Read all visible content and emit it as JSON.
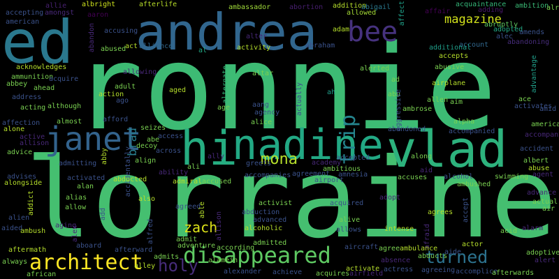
{
  "background": "#000000",
  "words": [
    {
      "text": "ronnie",
      "color": "#3dbb74"
    },
    {
      "text": "lorraine",
      "color": "#45bf70"
    },
    {
      "text": "andrea",
      "color": "#31668e"
    },
    {
      "text": "ed",
      "color": "#2a788e"
    },
    {
      "text": "nadine",
      "color": "#22a884"
    },
    {
      "text": "vlad",
      "color": "#2db27d"
    },
    {
      "text": "hi",
      "color": "#26ad81"
    },
    {
      "text": "janet",
      "color": "#33638d"
    },
    {
      "text": "bee",
      "color": "#46327e"
    },
    {
      "text": "disappeared",
      "color": "#5ec962"
    },
    {
      "text": "architect",
      "color": "#fde725"
    },
    {
      "text": "turned",
      "color": "#2c728e"
    },
    {
      "text": "trip",
      "color": "#25858e"
    },
    {
      "text": "mona",
      "color": "#b5de2b"
    },
    {
      "text": "zach",
      "color": "#dde318"
    },
    {
      "text": "holy",
      "color": "#472c7a"
    },
    {
      "text": "brad",
      "color": "#287d8e"
    },
    {
      "text": "magazine",
      "color": "#d2e21b"
    },
    {
      "text": "accepting",
      "color": "#3b528b"
    },
    {
      "text": "american",
      "color": "#3b528b"
    },
    {
      "text": "allie",
      "color": "#482071"
    },
    {
      "text": "amongst",
      "color": "#482878"
    },
    {
      "text": "albright",
      "color": "#cde11d"
    },
    {
      "text": "aaron",
      "color": "#440154"
    },
    {
      "text": "afterlife",
      "color": "#b8de29"
    },
    {
      "text": "ambassador",
      "color": "#a0da39"
    },
    {
      "text": "abortion",
      "color": "#481f70"
    },
    {
      "text": "addition",
      "color": "#b5de2b"
    },
    {
      "text": "abigail",
      "color": "#2a788e"
    },
    {
      "text": "allowed",
      "color": "#a5db36"
    },
    {
      "text": "affect",
      "color": "#1fa088"
    },
    {
      "text": "affair",
      "color": "#440154"
    },
    {
      "text": "acquaintance",
      "color": "#35b779"
    },
    {
      "text": "ambition",
      "color": "#3aba76"
    },
    {
      "text": "adding",
      "color": "#481769"
    },
    {
      "text": "already",
      "color": "#7ad151"
    },
    {
      "text": "abruptly",
      "color": "#5ec962"
    },
    {
      "text": "adopted",
      "color": "#22a884"
    },
    {
      "text": "amends",
      "color": "#3b528b"
    },
    {
      "text": "alec",
      "color": "#3b528b"
    },
    {
      "text": "abandon",
      "color": "#482878"
    },
    {
      "text": "accusing",
      "color": "#3b528b"
    },
    {
      "text": "alter",
      "color": "#482878"
    },
    {
      "text": "adam",
      "color": "#b5de2b"
    },
    {
      "text": "account",
      "color": "#31688e"
    },
    {
      "text": "abandoning",
      "color": "#472d7b"
    },
    {
      "text": "abused",
      "color": "#7ad151"
    },
    {
      "text": "act",
      "color": "#b5de2b"
    },
    {
      "text": "alliance",
      "color": "#31688e"
    },
    {
      "text": "al",
      "color": "#22a884"
    },
    {
      "text": "activity",
      "color": "#b5de2b"
    },
    {
      "text": "abraham",
      "color": "#3b528b"
    },
    {
      "text": "additional",
      "color": "#1f9e89"
    },
    {
      "text": "accepts",
      "color": "#b5de2b"
    },
    {
      "text": "advantage",
      "color": "#1f9e89"
    },
    {
      "text": "acknowledges",
      "color": "#b5de2b"
    },
    {
      "text": "allowing",
      "color": "#482878"
    },
    {
      "text": "alternate",
      "color": "#35b779"
    },
    {
      "text": "alerted",
      "color": "#7ad151"
    },
    {
      "text": "abusive",
      "color": "#7ad151"
    },
    {
      "text": "ammunition",
      "color": "#7ad151"
    },
    {
      "text": "acquire",
      "color": "#3b528b"
    },
    {
      "text": "adult",
      "color": "#7ad151"
    },
    {
      "text": "altar",
      "color": "#7ad151"
    },
    {
      "text": "ad",
      "color": "#7ad151"
    },
    {
      "text": "airplane",
      "color": "#b5de2b"
    },
    {
      "text": "abbey",
      "color": "#7ad151"
    },
    {
      "text": "ahead",
      "color": "#7ad151"
    },
    {
      "text": "aged",
      "color": "#b5de2b"
    },
    {
      "text": "ah",
      "color": "#1f9e89"
    },
    {
      "text": "abu",
      "color": "#7ad151"
    },
    {
      "text": "ace",
      "color": "#7ad151"
    },
    {
      "text": "address",
      "color": "#3b528b"
    },
    {
      "text": "action",
      "color": "#b5de2b"
    },
    {
      "text": "ago",
      "color": "#3b528b"
    },
    {
      "text": "actually",
      "color": "#3b528b"
    },
    {
      "text": "aggressive",
      "color": "#3b528b"
    },
    {
      "text": "allen",
      "color": "#7ad151"
    },
    {
      "text": "aim",
      "color": "#7ad151"
    },
    {
      "text": "activates",
      "color": "#3b528b"
    },
    {
      "text": "acting",
      "color": "#7ad151"
    },
    {
      "text": "although",
      "color": "#7ad151"
    },
    {
      "text": "age",
      "color": "#7ad151"
    },
    {
      "text": "aang",
      "color": "#3b528b"
    },
    {
      "text": "agency",
      "color": "#3b528b"
    },
    {
      "text": "ambrose",
      "color": "#7ad151"
    },
    {
      "text": "amid",
      "color": "#3b528b"
    },
    {
      "text": "america",
      "color": "#7ad151"
    },
    {
      "text": "affection",
      "color": "#3b528b"
    },
    {
      "text": "almost",
      "color": "#7ad151"
    },
    {
      "text": "afford",
      "color": "#3b528b"
    },
    {
      "text": "alice",
      "color": "#7ad151"
    },
    {
      "text": "alpha",
      "color": "#7ad151"
    },
    {
      "text": "alone",
      "color": "#b5de2b"
    },
    {
      "text": "seizes",
      "color": "#7ad151"
    },
    {
      "text": "abandoned",
      "color": "#3b528b"
    },
    {
      "text": "accompanied",
      "color": "#3b528b"
    },
    {
      "text": "accompany",
      "color": "#482878"
    },
    {
      "text": "active",
      "color": "#482878"
    },
    {
      "text": "access",
      "color": "#3b528b"
    },
    {
      "text": "allison",
      "color": "#482878"
    },
    {
      "text": "abe",
      "color": "#7ad151"
    },
    {
      "text": "decoy",
      "color": "#7ad151"
    },
    {
      "text": "across",
      "color": "#3b528b"
    },
    {
      "text": "accident",
      "color": "#3b528b"
    },
    {
      "text": "advice",
      "color": "#7ad151"
    },
    {
      "text": "abby",
      "color": "#b5de2b"
    },
    {
      "text": "accidentally",
      "color": "#3b528b"
    },
    {
      "text": "align",
      "color": "#7ad151"
    },
    {
      "text": "ali",
      "color": "#7ad151"
    },
    {
      "text": "ally",
      "color": "#482878"
    },
    {
      "text": "greets",
      "color": "#3b528b"
    },
    {
      "text": "academy",
      "color": "#482878"
    },
    {
      "text": "accepted",
      "color": "#3b528b"
    },
    {
      "text": "along",
      "color": "#7ad151"
    },
    {
      "text": "albert",
      "color": "#7ad151"
    },
    {
      "text": "admitting",
      "color": "#3b528b"
    },
    {
      "text": "ability",
      "color": "#482878"
    },
    {
      "text": "ambitious",
      "color": "#7ad151"
    },
    {
      "text": "aid",
      "color": "#482878"
    },
    {
      "text": "abuse",
      "color": "#b5de2b"
    },
    {
      "text": "agent",
      "color": "#482878"
    },
    {
      "text": "advises",
      "color": "#3b528b"
    },
    {
      "text": "alongside",
      "color": "#b5de2b"
    },
    {
      "text": "activated",
      "color": "#3b528b"
    },
    {
      "text": "alan",
      "color": "#7ad151"
    },
    {
      "text": "abducted",
      "color": "#b5de2b"
    },
    {
      "text": "admiral",
      "color": "#b5de2b"
    },
    {
      "text": "accused",
      "color": "#7ad151"
    },
    {
      "text": "accompanies",
      "color": "#3b528b"
    },
    {
      "text": "agreement",
      "color": "#3b528b"
    },
    {
      "text": "amnesia",
      "color": "#3b528b"
    },
    {
      "text": "airport",
      "color": "#3b528b"
    },
    {
      "text": "accuses",
      "color": "#7ad151"
    },
    {
      "text": "alcohol",
      "color": "#3b528b"
    },
    {
      "text": "ambushed",
      "color": "#7ad151"
    },
    {
      "text": "swimming",
      "color": "#7ad151"
    },
    {
      "text": "alias",
      "color": "#7ad151"
    },
    {
      "text": "also",
      "color": "#b5de2b"
    },
    {
      "text": "adopt",
      "color": "#482878"
    },
    {
      "text": "advance",
      "color": "#482878"
    },
    {
      "text": "actual",
      "color": "#7ad151"
    },
    {
      "text": "addict",
      "color": "#b5de2b"
    },
    {
      "text": "allow",
      "color": "#7ad151"
    },
    {
      "text": "agreed",
      "color": "#3b528b"
    },
    {
      "text": "able",
      "color": "#b5de2b"
    },
    {
      "text": "activist",
      "color": "#7ad151"
    },
    {
      "text": "acquired",
      "color": "#3b528b"
    },
    {
      "text": "agrees",
      "color": "#b5de2b"
    },
    {
      "text": "accept",
      "color": "#3b528b"
    },
    {
      "text": "air",
      "color": "#7ad151"
    },
    {
      "text": "alien",
      "color": "#3b528b"
    },
    {
      "text": "add",
      "color": "#3b528b"
    },
    {
      "text": "abduction",
      "color": "#3b528b"
    },
    {
      "text": "advanced",
      "color": "#3b528b"
    },
    {
      "text": "alive",
      "color": "#7ad151"
    },
    {
      "text": "aided",
      "color": "#3b528b"
    },
    {
      "text": "aging",
      "color": "#482878"
    },
    {
      "text": "alfred",
      "color": "#3b528b"
    },
    {
      "text": "allison",
      "color": "#482878"
    },
    {
      "text": "alcoholic",
      "color": "#b5de2b"
    },
    {
      "text": "allows",
      "color": "#3b528b"
    },
    {
      "text": "intense",
      "color": "#b5de2b"
    },
    {
      "text": "afraid",
      "color": "#482878"
    },
    {
      "text": "acid",
      "color": "#7ad151"
    },
    {
      "text": "alarm",
      "color": "#482878"
    },
    {
      "text": "ambush",
      "color": "#b5de2b"
    },
    {
      "text": "alex",
      "color": "#482878"
    },
    {
      "text": "admit",
      "color": "#7ad151"
    },
    {
      "text": "aboard",
      "color": "#3b528b"
    },
    {
      "text": "adventure",
      "color": "#7ad151"
    },
    {
      "text": "according",
      "color": "#7ad151"
    },
    {
      "text": "admitted",
      "color": "#7ad151"
    },
    {
      "text": "actor",
      "color": "#b5de2b"
    },
    {
      "text": "adoptive",
      "color": "#7ad151"
    },
    {
      "text": "aftermath",
      "color": "#b5de2b"
    },
    {
      "text": "afterward",
      "color": "#3b528b"
    },
    {
      "text": "aircraft",
      "color": "#3b528b"
    },
    {
      "text": "agree",
      "color": "#7ad151"
    },
    {
      "text": "ambulance",
      "color": "#b5de2b"
    },
    {
      "text": "aide",
      "color": "#3b528b"
    },
    {
      "text": "alert",
      "color": "#482878"
    },
    {
      "text": "always",
      "color": "#7ad151"
    },
    {
      "text": "admits",
      "color": "#7ad151"
    },
    {
      "text": "alamein",
      "color": "#7ad151"
    },
    {
      "text": "absence",
      "color": "#482878"
    },
    {
      "text": "abducts",
      "color": "#7ad151"
    },
    {
      "text": "alley",
      "color": "#b5de2b"
    },
    {
      "text": "alexander",
      "color": "#3b528b"
    },
    {
      "text": "achieve",
      "color": "#3b528b"
    },
    {
      "text": "acquires",
      "color": "#7ad151"
    },
    {
      "text": "activate",
      "color": "#b5de2b"
    },
    {
      "text": "actress",
      "color": "#3b528b"
    },
    {
      "text": "agreeing",
      "color": "#3b528b"
    },
    {
      "text": "accomplice",
      "color": "#3b528b"
    },
    {
      "text": "afterwards",
      "color": "#7ad151"
    },
    {
      "text": "african",
      "color": "#7ad151"
    },
    {
      "text": "airfield",
      "color": "#482878"
    }
  ]
}
